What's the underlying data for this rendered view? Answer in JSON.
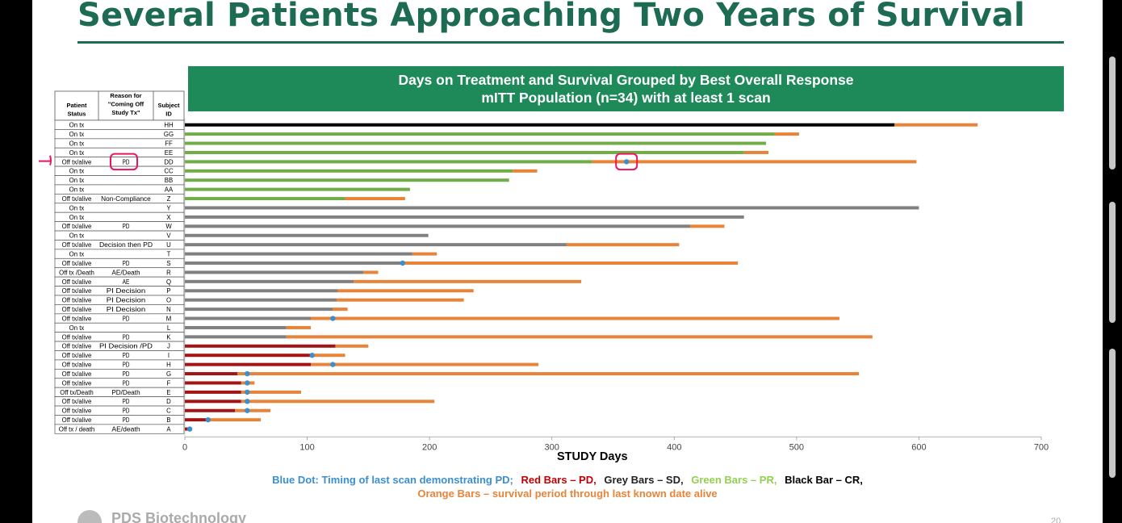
{
  "slide_title": "Several Patients Approaching Two Years of Survival",
  "banner_line1": "Days on Treatment and Survival Grouped by Best Overall Response",
  "banner_line2": "mITT Population (n=34)  with at least 1 scan",
  "table_headers": {
    "status": "Patient Status",
    "reason": "Reason for \"Coming Off Study Tx\"",
    "id": "Subject ID"
  },
  "legend": {
    "blue_dot": "Blue Dot: Timing of last scan demonstrating PD;",
    "red": "Red Bars – PD,",
    "grey": "Grey Bars – SD,",
    "green": "Green Bars – PR,",
    "black": "Black Bar – CR,",
    "orange": "Orange Bars – survival period through last known date alive"
  },
  "footer": {
    "company": "PDS Biotechnology",
    "page": "20"
  },
  "colors": {
    "title": "#1d6b52",
    "banner": "#1e8a5a",
    "CR": "#000000",
    "PR": "#70ad47",
    "SD": "#808080",
    "PD": "#a31515",
    "survival": "#e8843a",
    "dot": "#3b8fd1",
    "annot": "#e8175d"
  },
  "chart_data": {
    "type": "bar",
    "orientation": "horizontal",
    "xlabel": "STUDY Days",
    "xlim": [
      0,
      700
    ],
    "xticks": [
      0,
      100,
      200,
      300,
      400,
      500,
      600,
      700
    ],
    "rows": [
      {
        "status": "On tx",
        "reason": "",
        "id": "HH",
        "response": "CR",
        "treatment_end": 580,
        "survival_end": 648,
        "pd_scan": null
      },
      {
        "status": "On tx",
        "reason": "",
        "id": "GG",
        "response": "PR",
        "treatment_end": 482,
        "survival_end": 502,
        "pd_scan": null
      },
      {
        "status": "On tx",
        "reason": "",
        "id": "FF",
        "response": "PR",
        "treatment_end": 475,
        "survival_end": null,
        "pd_scan": null
      },
      {
        "status": "On tx",
        "reason": "",
        "id": "EE",
        "response": "PR",
        "treatment_end": 457,
        "survival_end": 477,
        "pd_scan": null
      },
      {
        "status": "Off tx/alive",
        "reason": "PD",
        "id": "DD",
        "response": "PR",
        "treatment_end": 333,
        "survival_end": 598,
        "pd_scan": 361
      },
      {
        "status": "On tx",
        "reason": "",
        "id": "CC",
        "response": "PR",
        "treatment_end": 268,
        "survival_end": 288,
        "pd_scan": null
      },
      {
        "status": "On tx",
        "reason": "",
        "id": "BB",
        "response": "PR",
        "treatment_end": 265,
        "survival_end": null,
        "pd_scan": null
      },
      {
        "status": "On tx",
        "reason": "",
        "id": "AA",
        "response": "PR",
        "treatment_end": 184,
        "survival_end": null,
        "pd_scan": null
      },
      {
        "status": "Off tx/alive",
        "reason": "Non-Compliance",
        "id": "Z",
        "response": "PR",
        "treatment_end": 131,
        "survival_end": 180,
        "pd_scan": null
      },
      {
        "status": "On tx",
        "reason": "",
        "id": "Y",
        "response": "SD",
        "treatment_end": 600,
        "survival_end": null,
        "pd_scan": null
      },
      {
        "status": "On tx",
        "reason": "",
        "id": "X",
        "response": "SD",
        "treatment_end": 457,
        "survival_end": null,
        "pd_scan": null
      },
      {
        "status": "Off tx/alive",
        "reason": "PD",
        "id": "W",
        "response": "SD",
        "treatment_end": 413,
        "survival_end": 441,
        "pd_scan": null
      },
      {
        "status": "On tx",
        "reason": "",
        "id": "V",
        "response": "SD",
        "treatment_end": 199,
        "survival_end": null,
        "pd_scan": null
      },
      {
        "status": "Off tx/alive",
        "reason": "Decision then PD",
        "id": "U",
        "response": "SD",
        "treatment_end": 312,
        "survival_end": 404,
        "pd_scan": null
      },
      {
        "status": "On tx",
        "reason": "",
        "id": "T",
        "response": "SD",
        "treatment_end": 186,
        "survival_end": 206,
        "pd_scan": null
      },
      {
        "status": "Off tx/alive",
        "reason": "PD",
        "id": "S",
        "response": "SD",
        "treatment_end": 178,
        "survival_end": 452,
        "pd_scan": 178
      },
      {
        "status": "Off tx /Death",
        "reason": "AE/Death",
        "id": "R",
        "response": "SD",
        "treatment_end": 146,
        "survival_end": 158,
        "pd_scan": null
      },
      {
        "status": "Off tx/alive",
        "reason": "AE",
        "id": "Q",
        "response": "SD",
        "treatment_end": 138,
        "survival_end": 324,
        "pd_scan": null
      },
      {
        "status": "Off tx/alive",
        "reason": "PI Decision",
        "id": "P",
        "response": "SD",
        "treatment_end": 125,
        "survival_end": 236,
        "pd_scan": null
      },
      {
        "status": "Off tx/alive",
        "reason": "PI Decision",
        "id": "O",
        "response": "SD",
        "treatment_end": 124,
        "survival_end": 228,
        "pd_scan": null
      },
      {
        "status": "Off tx/alive",
        "reason": "PI Decision",
        "id": "N",
        "response": "SD",
        "treatment_end": 121,
        "survival_end": 133,
        "pd_scan": null
      },
      {
        "status": "Off tx/alive",
        "reason": "PD",
        "id": "M",
        "response": "SD",
        "treatment_end": 103,
        "survival_end": 535,
        "pd_scan": 121
      },
      {
        "status": "On tx",
        "reason": "",
        "id": "L",
        "response": "SD",
        "treatment_end": 83,
        "survival_end": 103,
        "pd_scan": null
      },
      {
        "status": "Off tx/alive",
        "reason": "PD",
        "id": "K",
        "response": "SD",
        "treatment_end": 83,
        "survival_end": 562,
        "pd_scan": null
      },
      {
        "status": "Off tx/alive",
        "reason": "PI Decision /PD",
        "id": "J",
        "response": "PD",
        "treatment_end": 123,
        "survival_end": 150,
        "pd_scan": null
      },
      {
        "status": "Off tx/alive",
        "reason": "PD",
        "id": "I",
        "response": "PD",
        "treatment_end": 104,
        "survival_end": 131,
        "pd_scan": 104
      },
      {
        "status": "Off tx/alive",
        "reason": "PD",
        "id": "H",
        "response": "PD",
        "treatment_end": 103,
        "survival_end": 289,
        "pd_scan": 121
      },
      {
        "status": "Off tx/alive",
        "reason": "PD",
        "id": "G",
        "response": "PD",
        "treatment_end": 43,
        "survival_end": 551,
        "pd_scan": 51
      },
      {
        "status": "Off tx/alive",
        "reason": "PD",
        "id": "F",
        "response": "PD",
        "treatment_end": 46,
        "survival_end": 57,
        "pd_scan": 51
      },
      {
        "status": "Off tx/Death",
        "reason": "PD/Death",
        "id": "E",
        "response": "PD",
        "treatment_end": 46,
        "survival_end": 95,
        "pd_scan": 51
      },
      {
        "status": "Off tx/alive",
        "reason": "PD",
        "id": "D",
        "response": "PD",
        "treatment_end": 46,
        "survival_end": 204,
        "pd_scan": 51
      },
      {
        "status": "Off tx/alive",
        "reason": "PD",
        "id": "C",
        "response": "PD",
        "treatment_end": 41,
        "survival_end": 70,
        "pd_scan": 51
      },
      {
        "status": "Off tx/alive",
        "reason": "PD",
        "id": "B",
        "response": "PD",
        "treatment_end": 19,
        "survival_end": 62,
        "pd_scan": 19
      },
      {
        "status": "Off tx / death",
        "reason": "AE/death",
        "id": "A",
        "response": "PD",
        "treatment_end": 3,
        "survival_end": 4,
        "pd_scan": 4
      }
    ]
  }
}
